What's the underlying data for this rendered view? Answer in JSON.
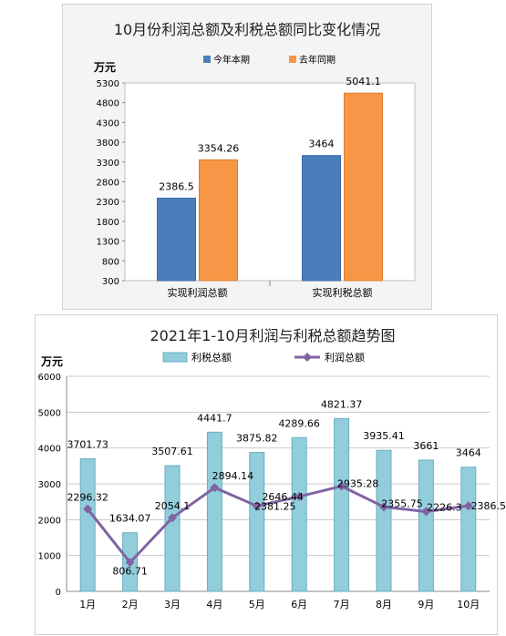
{
  "chart_data": [
    {
      "type": "bar",
      "title": "10月份利润总额及利税总额同比变化情况",
      "unit_label": "万元",
      "categories": [
        "实现利润总额",
        "实现利税总额"
      ],
      "series": [
        {
          "name": "今年本期",
          "values": [
            2386.5,
            3464
          ],
          "labels": [
            "2386.5",
            "3464"
          ],
          "color": "#4a7ebb"
        },
        {
          "name": "去年同期",
          "values": [
            3354.26,
            5041.1
          ],
          "labels": [
            "3354.26",
            "5041.1"
          ],
          "color": "#f79646"
        }
      ],
      "ylim": [
        300,
        5300
      ],
      "yticks": [
        300,
        800,
        1300,
        1800,
        2300,
        2800,
        3300,
        3800,
        4300,
        4800,
        5300
      ],
      "ytick_labels": [
        "300",
        "800",
        "1300",
        "1800",
        "2300",
        "2800",
        "3300",
        "3800",
        "4300",
        "4800",
        "5300"
      ],
      "legend_position": "top",
      "grid": false
    },
    {
      "type": "bar",
      "title": "2021年1-10月利润与利税总额趋势图",
      "unit_label": "万元",
      "categories": [
        "1月",
        "2月",
        "3月",
        "4月",
        "5月",
        "6月",
        "7月",
        "8月",
        "9月",
        "10月"
      ],
      "series": [
        {
          "name": "利税总额",
          "chart_type": "bar",
          "values": [
            3701.73,
            1634.07,
            3507.61,
            4441.7,
            3875.82,
            4289.66,
            4821.37,
            3935.41,
            3661,
            3464
          ],
          "labels": [
            "3701.73",
            "1634.07",
            "3507.61",
            "4441.7",
            "3875.82",
            "4289.66",
            "4821.37",
            "3935.41",
            "3661",
            "3464"
          ],
          "color": "#92cddc"
        },
        {
          "name": "利润总额",
          "chart_type": "line",
          "values": [
            2296.32,
            806.71,
            2054.1,
            2894.14,
            2381.25,
            2646.44,
            2935.28,
            2355.75,
            2226.3,
            2386.5
          ],
          "labels": [
            "2296.32",
            "806.71",
            "2054.1",
            "2894.14",
            "2381.25",
            "2646.44",
            "2935.28",
            "2355.75",
            "2226.3",
            "2386.5"
          ],
          "color": "#8064a2"
        }
      ],
      "ylim": [
        0,
        6000
      ],
      "yticks": [
        0,
        1000,
        2000,
        3000,
        4000,
        5000,
        6000
      ],
      "ytick_labels": [
        "0",
        "1000",
        "2000",
        "3000",
        "4000",
        "5000",
        "6000"
      ],
      "legend_position": "top",
      "grid": true
    }
  ]
}
